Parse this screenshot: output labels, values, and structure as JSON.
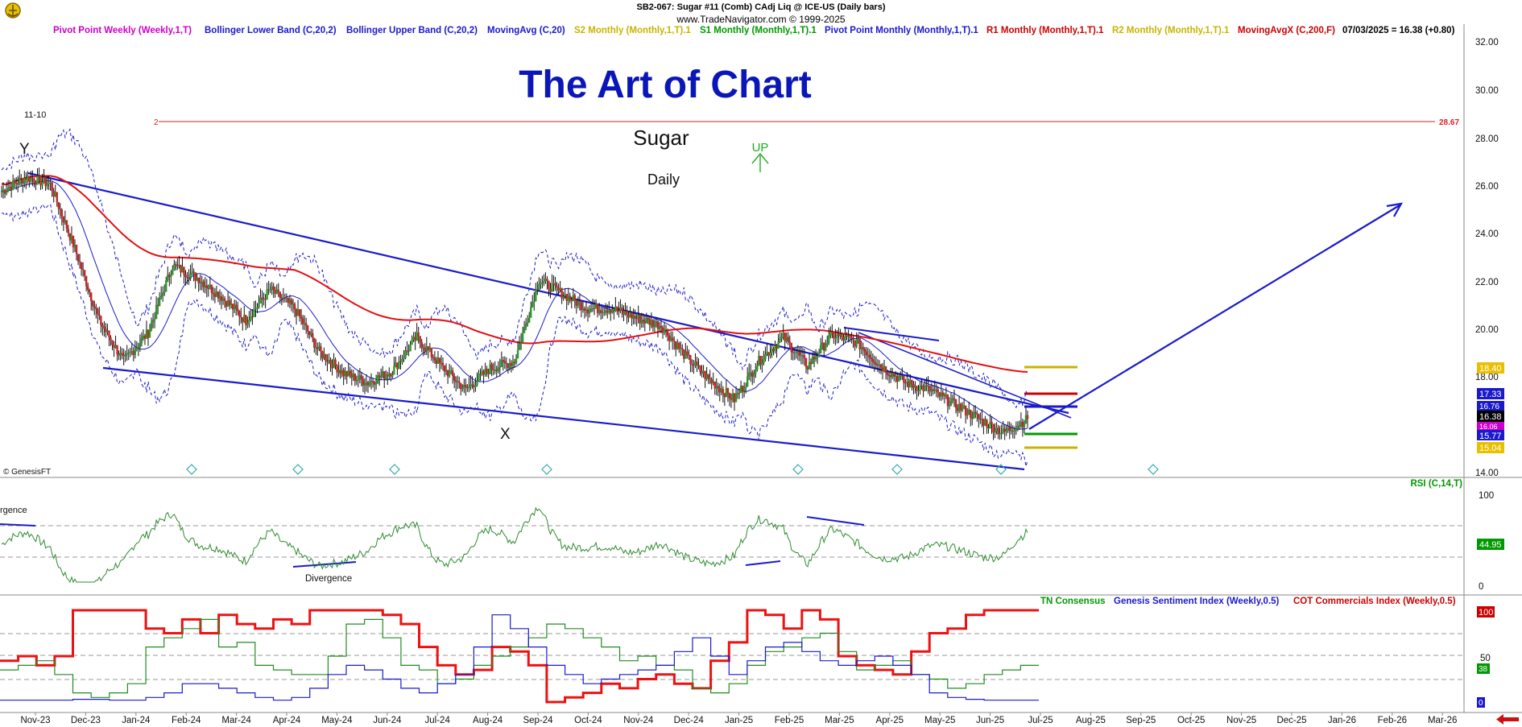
{
  "header": {
    "line1": "SB2-067:  Sugar #11 (Comb) CAdj Liq @ ICE-US  (Daily bars)",
    "line2": "www.TradeNavigator.com © 1999-2025"
  },
  "legend": [
    {
      "label": "Pivot Point Weekly (Weekly,1,T)",
      "color": "#cc00cc"
    },
    {
      "label": "Bollinger Lower Band (C,20,2)",
      "color": "#1a1acc"
    },
    {
      "label": "Bollinger Upper Band (C,20,2)",
      "color": "#1a1acc"
    },
    {
      "label": "MovingAvg (C,20)",
      "color": "#1a1acc"
    },
    {
      "label": "S2 Monthly (Monthly,1,T).1",
      "color": "#c8b400"
    },
    {
      "label": "S1 Monthly (Monthly,1,T).1",
      "color": "#009900"
    },
    {
      "label": "Pivot Point Monthly (Monthly,1,T).1",
      "color": "#1a1acc"
    },
    {
      "label": "R1 Monthly (Monthly,1,T).1",
      "color": "#cc0000"
    },
    {
      "label": "R2 Monthly (Monthly,1,T).1",
      "color": "#c8b400"
    },
    {
      "label": "MovingAvgX (C,200,F)",
      "color": "#cc0000"
    },
    {
      "label": "07/03/2025 = 16.38 (+0.80)",
      "color": "#000000"
    }
  ],
  "annotations": {
    "big_title": "The Art of Chart",
    "commodity": "Sugar",
    "timeframe": "Daily",
    "up_label": "UP",
    "wave_y": "Y",
    "wave_x": "X",
    "count_label": "11-10",
    "level_label": "2",
    "level_value": "28.67",
    "credit": "© GenesisFT",
    "rsi_label": "RSI (C,14,T)",
    "divergence_left": "rgence",
    "divergence": "Divergence"
  },
  "price_axis": {
    "ticks": [
      "32.00",
      "30.00",
      "28.00",
      "26.00",
      "24.00",
      "22.00",
      "20.00",
      "18.00",
      "14.00"
    ]
  },
  "price_tags": [
    {
      "value": "18.40",
      "bg": "#e8c000",
      "fg": "#ffffff"
    },
    {
      "value": "17.33",
      "bg": "#1a1acc",
      "fg": "#ffffff"
    },
    {
      "value": "16.76",
      "bg": "#1a1acc",
      "fg": "#ffffff"
    },
    {
      "value": "16.38",
      "bg": "#000000",
      "fg": "#ffffff"
    },
    {
      "value": "16.06",
      "bg": "#cc00cc",
      "fg": "#ffffff"
    },
    {
      "value": "15.77",
      "bg": "#1a1acc",
      "fg": "#ffffff"
    },
    {
      "value": "15.04",
      "bg": "#e8c000",
      "fg": "#ffffff"
    }
  ],
  "rsi_axis": {
    "ticks": [
      "100",
      "0"
    ]
  },
  "rsi_tag": {
    "value": "44.95",
    "bg": "#009900"
  },
  "sentiment_legend": [
    {
      "label": "TN Consensus",
      "color": "#009900"
    },
    {
      "label": "Genesis Sentiment Index (Weekly,0.5)",
      "color": "#1a1acc"
    },
    {
      "label": "COT Commercials Index (Weekly,0.5)",
      "color": "#cc0000"
    }
  ],
  "sentiment_axis": {
    "ticks": [
      "50"
    ]
  },
  "sentiment_tags": [
    {
      "value": "100",
      "bg": "#cc0000"
    },
    {
      "value": "38",
      "bg": "#009900"
    },
    {
      "value": "0",
      "bg": "#1a1acc"
    }
  ],
  "x_axis": {
    "labels": [
      "Nov-23",
      "Dec-23",
      "Jan-24",
      "Feb-24",
      "Mar-24",
      "Apr-24",
      "May-24",
      "Jun-24",
      "Jul-24",
      "Aug-24",
      "Sep-24",
      "Oct-24",
      "Nov-24",
      "Dec-24",
      "Jan-25",
      "Feb-25",
      "Mar-25",
      "Apr-25",
      "May-25",
      "Jun-25",
      "Jul-25",
      "Aug-25",
      "Sep-25",
      "Oct-25",
      "Nov-25",
      "Dec-25",
      "Jan-26",
      "Feb-26",
      "Mar-26"
    ]
  },
  "chart_data": {
    "type": "line",
    "title": "SB2-067:  Sugar #11 (Comb) CAdj Liq @ ICE-US  (Daily bars)",
    "x_unit": "month",
    "y_range": [
      14,
      32
    ],
    "price_path": [
      [
        "Nov-23",
        25.9
      ],
      [
        "Nov-23b",
        26.5
      ],
      [
        "Dec-23",
        26.2
      ],
      [
        "Dec-23b",
        23.5
      ],
      [
        "Dec-23c",
        20.5
      ],
      [
        "Jan-24",
        18.8
      ],
      [
        "Jan-24b",
        20.0
      ],
      [
        "Feb-24",
        22.8
      ],
      [
        "Feb-24b",
        22.3
      ],
      [
        "Mar-24",
        21.5
      ],
      [
        "Mar-24b",
        20.5
      ],
      [
        "Apr-24",
        21.8
      ],
      [
        "Apr-24b",
        21.0
      ],
      [
        "May-24",
        19.2
      ],
      [
        "May-24b",
        18.3
      ],
      [
        "Jun-24",
        17.9
      ],
      [
        "Jun-24b",
        18.4
      ],
      [
        "Jul-24",
        19.8
      ],
      [
        "Jul-24b",
        18.6
      ],
      [
        "Aug-24",
        17.6
      ],
      [
        "Aug-24b",
        18.5
      ],
      [
        "Sep-24",
        18.8
      ],
      [
        "Sep-24b",
        22.2
      ],
      [
        "Oct-24",
        21.6
      ],
      [
        "Oct-24b",
        21.0
      ],
      [
        "Nov-24",
        21.0
      ],
      [
        "Nov-24b",
        20.6
      ],
      [
        "Dec-24",
        20.3
      ],
      [
        "Dec-24b",
        19.0
      ],
      [
        "Jan-25",
        18.0
      ],
      [
        "Jan-25b",
        17.2
      ],
      [
        "Feb-25",
        18.8
      ],
      [
        "Feb-25b",
        19.8
      ],
      [
        "Mar-25",
        18.6
      ],
      [
        "Mar-25b",
        19.9
      ],
      [
        "Apr-25",
        19.6
      ],
      [
        "Apr-25b",
        18.6
      ],
      [
        "May-25",
        17.9
      ],
      [
        "May-25b",
        17.6
      ],
      [
        "Jun-25",
        17.0
      ],
      [
        "Jun-25b",
        16.4
      ],
      [
        "Jul-25",
        15.8
      ],
      [
        "Jul-25b",
        16.38
      ]
    ],
    "last": {
      "date": "07/03/2025",
      "close": 16.38,
      "change": 0.8
    },
    "levels": {
      "S2": 15.04,
      "S1": 15.77,
      "PivotWeekly": 16.06,
      "PivotMonthly": 16.76,
      "R1": 17.33,
      "R2": 18.4,
      "target": 28.67
    },
    "rsi": {
      "last": 44.95,
      "range": [
        0,
        100
      ]
    },
    "sentiment": {
      "cot": 100,
      "tn": 38,
      "genesis": 0
    }
  }
}
